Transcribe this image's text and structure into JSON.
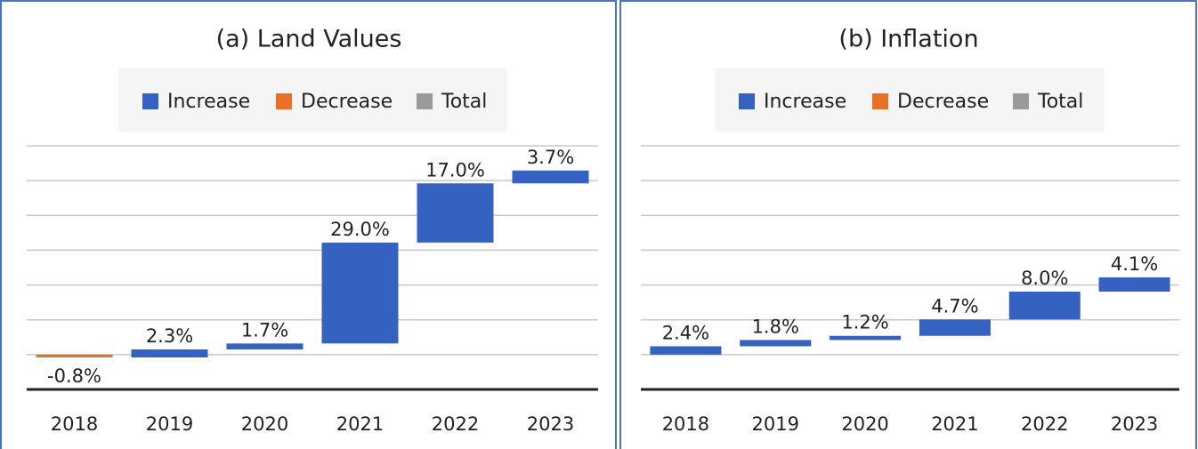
{
  "chart_data": [
    {
      "type": "waterfall",
      "title": "(a) Land Values",
      "legend": [
        {
          "name": "Increase",
          "color": "#3561c0"
        },
        {
          "name": "Decrease",
          "color": "#e8702a"
        },
        {
          "name": "Total",
          "color": "#9a9a9a"
        }
      ],
      "categories": [
        "2018",
        "2019",
        "2020",
        "2021",
        "2022",
        "2023"
      ],
      "values": [
        -0.8,
        2.3,
        1.7,
        29.0,
        17.0,
        3.7
      ],
      "value_labels": [
        "-0.8%",
        "2.3%",
        "1.7%",
        "29.0%",
        "17.0%",
        "3.7%"
      ],
      "ylim": [
        -10,
        60
      ],
      "yticks": [
        -10,
        0,
        10,
        20,
        30,
        40,
        50,
        60
      ],
      "grid": true
    },
    {
      "type": "waterfall",
      "title": "(b) Inflation",
      "legend": [
        {
          "name": "Increase",
          "color": "#3561c0"
        },
        {
          "name": "Decrease",
          "color": "#e8702a"
        },
        {
          "name": "Total",
          "color": "#9a9a9a"
        }
      ],
      "categories": [
        "2018",
        "2019",
        "2020",
        "2021",
        "2022",
        "2023"
      ],
      "values": [
        2.4,
        1.8,
        1.2,
        4.7,
        8.0,
        4.1
      ],
      "value_labels": [
        "2.4%",
        "1.8%",
        "1.2%",
        "4.7%",
        "8.0%",
        "4.1%"
      ],
      "ylim": [
        -10,
        60
      ],
      "yticks": [
        -10,
        0,
        10,
        20,
        30,
        40,
        50,
        60
      ],
      "grid": true
    }
  ]
}
